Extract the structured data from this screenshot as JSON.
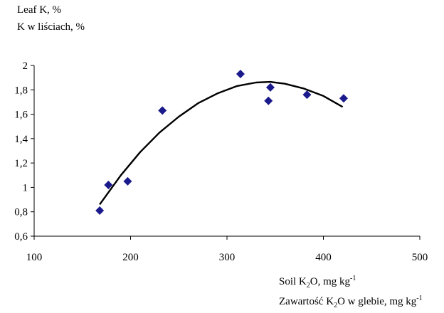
{
  "chart_data": {
    "type": "scatter",
    "ylabel_line1": "Leaf K, %",
    "ylabel_line2": "K w liściach, %",
    "xlabel_line1": {
      "pre": "Soil K",
      "sub": "2",
      "mid": "O, mg kg",
      "sup": "-1"
    },
    "xlabel_line2": {
      "pre": "Zawartość K",
      "sub": "2",
      "mid": "O w glebie, mg kg",
      "sup": "-1"
    },
    "xlim": [
      100,
      500
    ],
    "ylim": [
      0.6,
      2
    ],
    "x_ticks": [
      100,
      200,
      300,
      400,
      500
    ],
    "x_tick_labels": [
      "100",
      "200",
      "300",
      "400",
      "500"
    ],
    "y_ticks": [
      0.6,
      0.8,
      1.0,
      1.2,
      1.4,
      1.6,
      1.8,
      2.0
    ],
    "y_tick_labels": [
      "0,6",
      "0,8",
      "1",
      "1,2",
      "1,4",
      "1,6",
      "1,8",
      "2"
    ],
    "grid": false,
    "marker": "diamond",
    "marker_color": "#1a1a8c",
    "line_color": "#000000",
    "points": [
      {
        "x": 168,
        "y": 0.81
      },
      {
        "x": 177,
        "y": 1.02
      },
      {
        "x": 197,
        "y": 1.05
      },
      {
        "x": 233,
        "y": 1.63
      },
      {
        "x": 314,
        "y": 1.93
      },
      {
        "x": 343,
        "y": 1.71
      },
      {
        "x": 345,
        "y": 1.82
      },
      {
        "x": 383,
        "y": 1.76
      },
      {
        "x": 421,
        "y": 1.73
      }
    ],
    "trendline": {
      "x": [
        168,
        190,
        210,
        230,
        250,
        270,
        290,
        310,
        330,
        345,
        360,
        380,
        400,
        420
      ],
      "y": [
        0.86,
        1.1,
        1.29,
        1.45,
        1.58,
        1.69,
        1.77,
        1.83,
        1.86,
        1.865,
        1.85,
        1.81,
        1.75,
        1.66
      ]
    }
  }
}
